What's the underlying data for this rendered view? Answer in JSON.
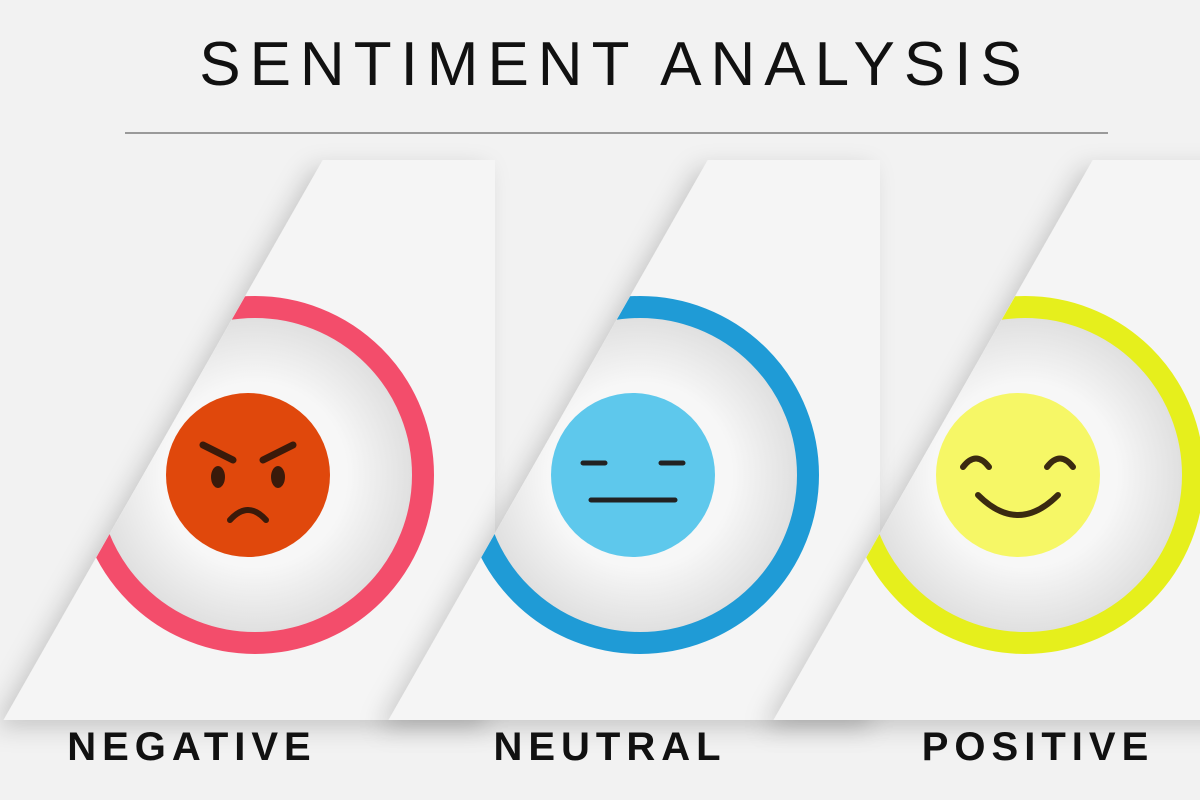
{
  "header": {
    "title": "SENTIMENT ANALYSIS"
  },
  "items": [
    {
      "label": "NEGATIVE"
    },
    {
      "label": "NEUTRAL"
    },
    {
      "label": "POSITIVE"
    }
  ]
}
